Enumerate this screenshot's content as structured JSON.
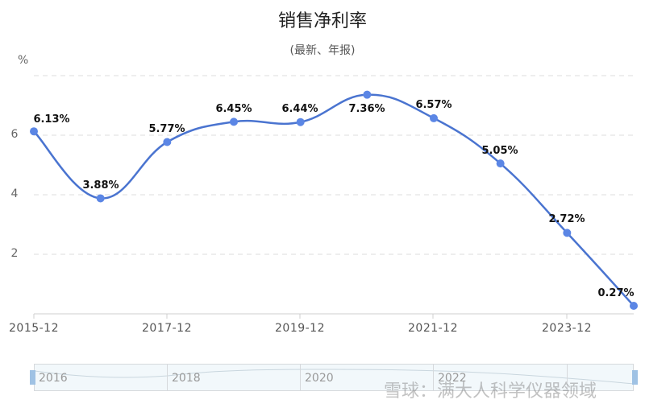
{
  "title": "销售净利率",
  "subtitle": "(最新、年报)",
  "y_unit": "%",
  "y_ticks": [
    "2",
    "4",
    "6"
  ],
  "x_ticks": [
    "2015-12",
    "2017-12",
    "2019-12",
    "2021-12",
    "2023-12"
  ],
  "data_labels": [
    "6.13%",
    "3.88%",
    "5.77%",
    "6.45%",
    "6.44%",
    "7.36%",
    "6.57%",
    "5.05%",
    "2.72%",
    "0.27%"
  ],
  "zoom_slider": {
    "labels": [
      "2016",
      "2018",
      "2020",
      "2022"
    ]
  },
  "watermark": "雪球：满大人科学仪器领域",
  "colors": {
    "line": "#4a74d0",
    "point": "#5b86e5",
    "grid": "#dddddd"
  },
  "chart_data": {
    "type": "line",
    "title": "销售净利率",
    "subtitle": "(最新、年报)",
    "xlabel": "",
    "ylabel": "%",
    "x": [
      "2015-12",
      "2016-12",
      "2017-12",
      "2018-12",
      "2019-12",
      "2020-12",
      "2021-12",
      "2022-12",
      "2023-12",
      "2024-12"
    ],
    "series": [
      {
        "name": "销售净利率",
        "values": [
          6.13,
          3.88,
          5.77,
          6.45,
          6.44,
          7.36,
          6.57,
          5.05,
          2.72,
          0.27
        ]
      }
    ],
    "x_tick_labels": [
      "2015-12",
      "2017-12",
      "2019-12",
      "2021-12",
      "2023-12"
    ],
    "y_tick_labels": [
      "2",
      "4",
      "6"
    ],
    "ylim": [
      0,
      8
    ],
    "grid": "horizontal dashed",
    "smooth": true,
    "data_labels": true,
    "legend": "none",
    "data_zoom_slider": true
  }
}
